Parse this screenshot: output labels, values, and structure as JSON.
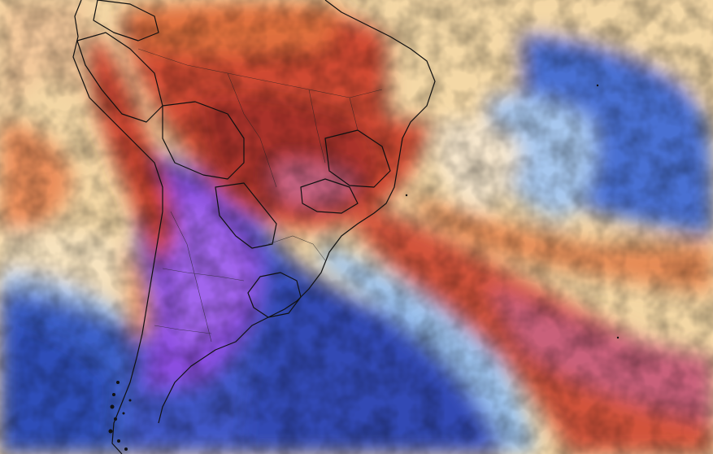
{
  "map": {
    "kind": "weather-model-temperature-anomaly",
    "region": "South America",
    "overlays": [
      "country-borders",
      "state-borders",
      "coastlines"
    ],
    "palette": {
      "deep_purple": "#7a3fd6",
      "violet": "#9a5ae8",
      "deep_blue": "#2f55c2",
      "blue": "#4d78d6",
      "light_blue": "#8fb6ec",
      "pale_blue": "#cfe3f3",
      "cream": "#f4dfb8",
      "light_orange": "#f3b27a",
      "orange": "#e4733f",
      "red": "#c9402e",
      "dark_red": "#a82f2a",
      "pink_red": "#c9607a",
      "border": "#111111"
    }
  }
}
